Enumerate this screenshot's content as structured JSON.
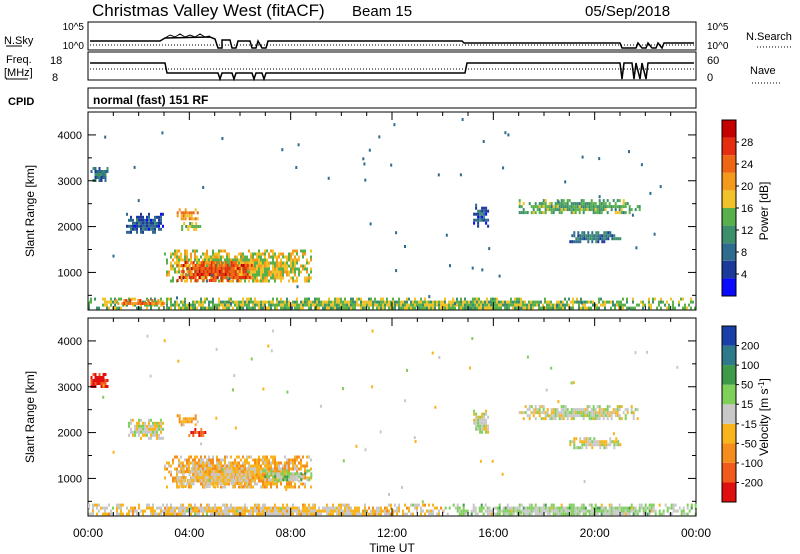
{
  "header": {
    "station": "Christmas Valley West (fitACF)",
    "beam": "Beam 15",
    "date": "05/Sep/2018"
  },
  "panels": {
    "nsky_label": "N.Sky",
    "nsky_ticks": [
      "10^5",
      "10^0"
    ],
    "nsearch_label": "N.Search",
    "nsearch_ticks": [
      "10^5",
      "10^0"
    ],
    "freq_label_1": "Freq.",
    "freq_label_2": "[MHz]",
    "freq_ticks": [
      "18",
      "8"
    ],
    "nave_label": "Nave",
    "nave_ticks": [
      "60",
      "0"
    ],
    "cpid_label": "CPID",
    "cpid_value": "normal (fast) 151 RF"
  },
  "colors": {
    "power_scale": [
      "#0a0aff",
      "#1c3a9a",
      "#2f6b8f",
      "#3c8f6a",
      "#57b04a",
      "#f2c22a",
      "#f39a1d",
      "#ee6614",
      "#e52d10",
      "#c40000"
    ],
    "velocity_scale": [
      "#e01010",
      "#f05a1a",
      "#f58c1e",
      "#f8b41c",
      "#c8c8c8",
      "#7fd05a",
      "#3e9a4a",
      "#2f7a8a",
      "#1a3fa8"
    ]
  },
  "chart_data": [
    {
      "type": "heatmap",
      "title": "",
      "xlabel": "Time UT",
      "ylabel": "Slant Range [km]",
      "x_tick_labels": [
        "00:00",
        "04:00",
        "08:00",
        "12:00",
        "16:00",
        "20:00",
        "00:00"
      ],
      "y_tick_labels": [
        "1000",
        "2000",
        "3000",
        "4000"
      ],
      "xlim_hours": [
        0,
        24
      ],
      "ylim_km": [
        180,
        4500
      ],
      "colorbar": {
        "label": "Power [dB]",
        "ticks": [
          "4",
          "8",
          "12",
          "16",
          "20",
          "24",
          "28"
        ],
        "range": [
          0,
          30
        ]
      },
      "regions": [
        {
          "t": [
            0.1,
            0.8
          ],
          "r": [
            3000,
            3300
          ],
          "v": 8
        },
        {
          "t": [
            1.5,
            3.0
          ],
          "r": [
            1900,
            2300
          ],
          "v": 6
        },
        {
          "t": [
            3.0,
            8.8
          ],
          "r": [
            800,
            1500
          ],
          "v": 16
        },
        {
          "t": [
            3.5,
            6.5
          ],
          "r": [
            850,
            1250
          ],
          "v": 24
        },
        {
          "t": [
            3.5,
            4.3
          ],
          "r": [
            2200,
            2400
          ],
          "v": 20
        },
        {
          "t": [
            3.6,
            4.4
          ],
          "r": [
            1950,
            2100
          ],
          "v": 14
        },
        {
          "t": [
            15.2,
            15.8
          ],
          "r": [
            2000,
            2500
          ],
          "v": 6
        },
        {
          "t": [
            17.0,
            21.8
          ],
          "r": [
            2300,
            2600
          ],
          "v": 12
        },
        {
          "t": [
            19.0,
            21.0
          ],
          "r": [
            1700,
            1900
          ],
          "v": 8
        },
        {
          "t": [
            0.0,
            24.0
          ],
          "r": [
            200,
            450
          ],
          "v": 14
        },
        {
          "t": [
            1.0,
            3.0
          ],
          "r": [
            300,
            420
          ],
          "v": 22
        }
      ]
    },
    {
      "type": "heatmap",
      "title": "",
      "xlabel": "Time UT",
      "ylabel": "Slant Range [km]",
      "x_tick_labels": [
        "00:00",
        "04:00",
        "08:00",
        "12:00",
        "16:00",
        "20:00",
        "00:00"
      ],
      "y_tick_labels": [
        "1000",
        "2000",
        "3000",
        "4000"
      ],
      "xlim_hours": [
        0,
        24
      ],
      "ylim_km": [
        180,
        4500
      ],
      "colorbar": {
        "label": "Velocity [m s^-1]",
        "ticks": [
          "-200",
          "-100",
          "-50",
          "-15",
          "15",
          "50",
          "100",
          "200"
        ],
        "range": [
          -250,
          250
        ]
      },
      "regions": [
        {
          "t": [
            0.1,
            0.8
          ],
          "r": [
            3000,
            3300
          ],
          "v": -220
        },
        {
          "t": [
            1.5,
            3.0
          ],
          "r": [
            1900,
            2300
          ],
          "v": 0
        },
        {
          "t": [
            3.0,
            8.8
          ],
          "r": [
            800,
            1500
          ],
          "v": -60
        },
        {
          "t": [
            3.5,
            6.5
          ],
          "r": [
            850,
            1250
          ],
          "v": -30
        },
        {
          "t": [
            3.5,
            4.3
          ],
          "r": [
            2200,
            2400
          ],
          "v": -80
        },
        {
          "t": [
            3.8,
            4.6
          ],
          "r": [
            1950,
            2100
          ],
          "v": -180
        },
        {
          "t": [
            6.8,
            8.8
          ],
          "r": [
            950,
            1200
          ],
          "v": 40
        },
        {
          "t": [
            15.2,
            15.8
          ],
          "r": [
            2000,
            2500
          ],
          "v": 0
        },
        {
          "t": [
            17.0,
            21.8
          ],
          "r": [
            2300,
            2600
          ],
          "v": 0
        },
        {
          "t": [
            19.0,
            21.0
          ],
          "r": [
            1700,
            1900
          ],
          "v": 5
        },
        {
          "t": [
            0.0,
            14.0
          ],
          "r": [
            200,
            450
          ],
          "v": -30
        },
        {
          "t": [
            14.0,
            24.0
          ],
          "r": [
            200,
            450
          ],
          "v": 30
        }
      ]
    }
  ]
}
